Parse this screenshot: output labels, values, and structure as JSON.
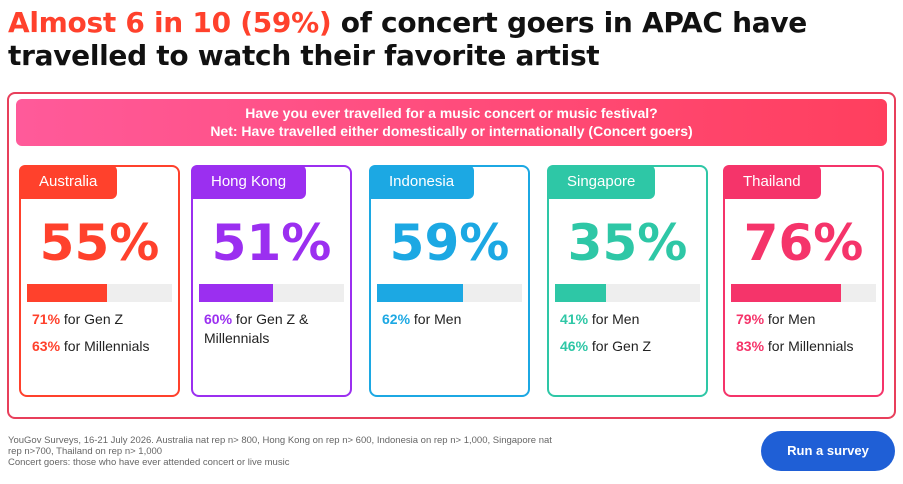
{
  "headline": {
    "highlight": "Almost 6 in 10 (59%)",
    "rest": " of concert goers in APAC have travelled to watch their favorite artist"
  },
  "banner": {
    "question": "Have you ever travelled for a music concert or music festival?",
    "net": "Net: Have travelled either domestically or internationally (Concert goers)"
  },
  "chart_data": {
    "type": "bar",
    "title": "Have you ever travelled for a music concert or music festival?",
    "subtitle": "Net: Have travelled either domestically or internationally (Concert goers)",
    "categories": [
      "Australia",
      "Hong Kong",
      "Indonesia",
      "Singapore",
      "Thailand"
    ],
    "values": [
      55,
      51,
      59,
      35,
      76
    ],
    "value_labels": [
      "55%",
      "51%",
      "59%",
      "35%",
      "76%"
    ],
    "ylim": [
      0,
      100
    ]
  },
  "cards": [
    {
      "country": "Australia",
      "value": "55%",
      "color": "#ff412c",
      "stats": [
        {
          "pct": "71%",
          "text": " for Gen Z"
        },
        {
          "pct": "63%",
          "text": " for Millennials"
        }
      ]
    },
    {
      "country": "Hong Kong",
      "value": "51%",
      "color": "#9b2ff0",
      "stats": [
        {
          "pct": "60%",
          "text": " for Gen Z & Millennials"
        }
      ]
    },
    {
      "country": "Indonesia",
      "value": "59%",
      "color": "#1ca8e3",
      "stats": [
        {
          "pct": "62%",
          "text": " for Men"
        }
      ]
    },
    {
      "country": "Singapore",
      "value": "35%",
      "color": "#2ec7a6",
      "stats": [
        {
          "pct": "41%",
          "text": " for Men"
        },
        {
          "pct": "46%",
          "text": " for Gen Z"
        }
      ]
    },
    {
      "country": "Thailand",
      "value": "76%",
      "color": "#f5346a",
      "stats": [
        {
          "pct": "79%",
          "text": " for Men"
        },
        {
          "pct": "83%",
          "text": " for Millennials"
        }
      ]
    }
  ],
  "footnote": {
    "line1": "YouGov Surveys, 16-21 July 2026. Australia nat rep n> 800, Hong Kong on rep n> 600, Indonesia on rep n> 1,000, Singapore nat rep n>700, Thailand on rep n> 1,000",
    "line2": "Concert goers: those who have ever attended concert or live music"
  },
  "cta": {
    "label": "Run a survey"
  }
}
